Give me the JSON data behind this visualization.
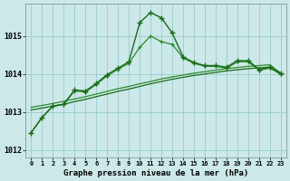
{
  "title": "Graphe pression niveau de la mer (hPa)",
  "bg_color": "#cce8e8",
  "grid_color": "#99cccc",
  "line_color1": "#1a6b1a",
  "line_color2": "#2d8b2d",
  "xlim": [
    -0.5,
    23.5
  ],
  "ylim": [
    1011.8,
    1015.85
  ],
  "yticks": [
    1012,
    1013,
    1014,
    1015
  ],
  "xticks": [
    0,
    1,
    2,
    3,
    4,
    5,
    6,
    7,
    8,
    9,
    10,
    11,
    12,
    13,
    14,
    15,
    16,
    17,
    18,
    19,
    20,
    21,
    22,
    23
  ],
  "series_peak": [
    1012.45,
    1012.85,
    1013.15,
    1013.2,
    1013.58,
    1013.55,
    1013.75,
    1013.98,
    1014.15,
    1014.32,
    1015.35,
    1015.62,
    1015.48,
    1015.08,
    1014.45,
    1014.3,
    1014.22,
    1014.22,
    1014.18,
    1014.35,
    1014.35,
    1014.12,
    1014.18,
    1014.02
  ],
  "series_linear1": [
    1013.05,
    1013.1,
    1013.15,
    1013.2,
    1013.27,
    1013.33,
    1013.4,
    1013.47,
    1013.54,
    1013.6,
    1013.67,
    1013.74,
    1013.8,
    1013.86,
    1013.91,
    1013.96,
    1014.0,
    1014.04,
    1014.08,
    1014.11,
    1014.14,
    1014.16,
    1014.18,
    1013.98
  ],
  "series_linear2": [
    1013.12,
    1013.17,
    1013.22,
    1013.28,
    1013.34,
    1013.4,
    1013.47,
    1013.54,
    1013.61,
    1013.67,
    1013.74,
    1013.8,
    1013.87,
    1013.92,
    1013.97,
    1014.02,
    1014.06,
    1014.1,
    1014.14,
    1014.17,
    1014.2,
    1014.22,
    1014.24,
    1014.02
  ],
  "series_close": [
    1012.45,
    1012.85,
    1013.15,
    1013.2,
    1013.55,
    1013.52,
    1013.72,
    1013.95,
    1014.12,
    1014.28,
    1014.7,
    1015.0,
    1014.85,
    1014.78,
    1014.42,
    1014.28,
    1014.2,
    1014.2,
    1014.15,
    1014.32,
    1014.32,
    1014.1,
    1014.15,
    1014.0
  ]
}
